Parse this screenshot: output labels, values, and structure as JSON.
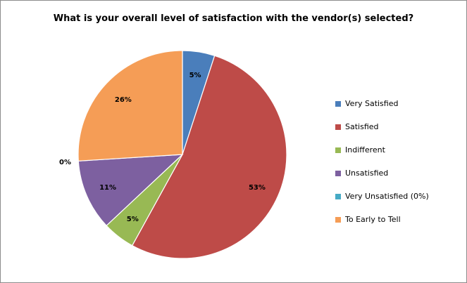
{
  "chart_data": {
    "type": "pie",
    "title": "What is your overall level of satisfaction with the vendor(s) selected?",
    "legend_position": "right",
    "slices": [
      {
        "name": "Very Satisfied",
        "value": 5,
        "label": "5%",
        "color": "#4a7ebb"
      },
      {
        "name": "Satisfied",
        "value": 53,
        "label": "53%",
        "color": "#be4b48"
      },
      {
        "name": "Indifferent",
        "value": 5,
        "label": "5%",
        "color": "#98b954"
      },
      {
        "name": "Unsatisfied",
        "value": 11,
        "label": "11%",
        "color": "#7d60a0"
      },
      {
        "name": "Very Unsatisfied (0%)",
        "value": 0,
        "label": "0%",
        "color": "#46aac5"
      },
      {
        "name": "To Early to Tell",
        "value": 26,
        "label": "26%",
        "color": "#f59d56"
      }
    ]
  }
}
